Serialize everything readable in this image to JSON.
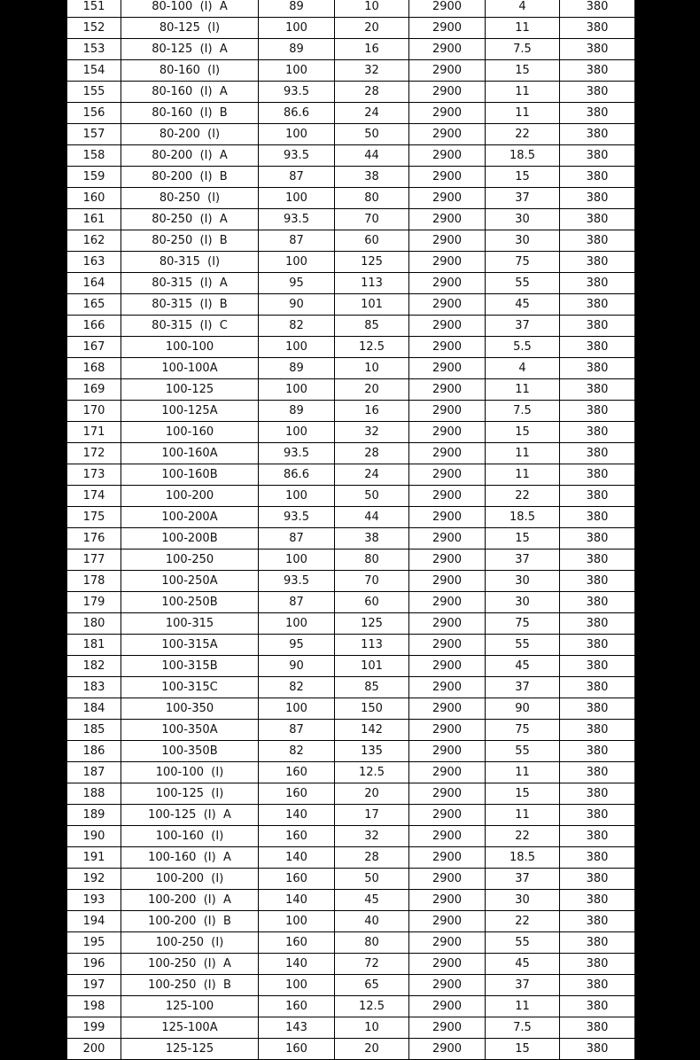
{
  "rows": [
    [
      "151",
      "80-100  (I)  A",
      "89",
      "10",
      "2900",
      "4",
      "380"
    ],
    [
      "152",
      "80-125  (I)",
      "100",
      "20",
      "2900",
      "11",
      "380"
    ],
    [
      "153",
      "80-125  (I)  A",
      "89",
      "16",
      "2900",
      "7.5",
      "380"
    ],
    [
      "154",
      "80-160  (I)",
      "100",
      "32",
      "2900",
      "15",
      "380"
    ],
    [
      "155",
      "80-160  (I)  A",
      "93.5",
      "28",
      "2900",
      "11",
      "380"
    ],
    [
      "156",
      "80-160  (I)  B",
      "86.6",
      "24",
      "2900",
      "11",
      "380"
    ],
    [
      "157",
      "80-200  (I)",
      "100",
      "50",
      "2900",
      "22",
      "380"
    ],
    [
      "158",
      "80-200  (I)  A",
      "93.5",
      "44",
      "2900",
      "18.5",
      "380"
    ],
    [
      "159",
      "80-200  (I)  B",
      "87",
      "38",
      "2900",
      "15",
      "380"
    ],
    [
      "160",
      "80-250  (I)",
      "100",
      "80",
      "2900",
      "37",
      "380"
    ],
    [
      "161",
      "80-250  (I)  A",
      "93.5",
      "70",
      "2900",
      "30",
      "380"
    ],
    [
      "162",
      "80-250  (I)  B",
      "87",
      "60",
      "2900",
      "30",
      "380"
    ],
    [
      "163",
      "80-315  (I)",
      "100",
      "125",
      "2900",
      "75",
      "380"
    ],
    [
      "164",
      "80-315  (I)  A",
      "95",
      "113",
      "2900",
      "55",
      "380"
    ],
    [
      "165",
      "80-315  (I)  B",
      "90",
      "101",
      "2900",
      "45",
      "380"
    ],
    [
      "166",
      "80-315  (I)  C",
      "82",
      "85",
      "2900",
      "37",
      "380"
    ],
    [
      "167",
      "100-100",
      "100",
      "12.5",
      "2900",
      "5.5",
      "380"
    ],
    [
      "168",
      "100-100A",
      "89",
      "10",
      "2900",
      "4",
      "380"
    ],
    [
      "169",
      "100-125",
      "100",
      "20",
      "2900",
      "11",
      "380"
    ],
    [
      "170",
      "100-125A",
      "89",
      "16",
      "2900",
      "7.5",
      "380"
    ],
    [
      "171",
      "100-160",
      "100",
      "32",
      "2900",
      "15",
      "380"
    ],
    [
      "172",
      "100-160A",
      "93.5",
      "28",
      "2900",
      "11",
      "380"
    ],
    [
      "173",
      "100-160B",
      "86.6",
      "24",
      "2900",
      "11",
      "380"
    ],
    [
      "174",
      "100-200",
      "100",
      "50",
      "2900",
      "22",
      "380"
    ],
    [
      "175",
      "100-200A",
      "93.5",
      "44",
      "2900",
      "18.5",
      "380"
    ],
    [
      "176",
      "100-200B",
      "87",
      "38",
      "2900",
      "15",
      "380"
    ],
    [
      "177",
      "100-250",
      "100",
      "80",
      "2900",
      "37",
      "380"
    ],
    [
      "178",
      "100-250A",
      "93.5",
      "70",
      "2900",
      "30",
      "380"
    ],
    [
      "179",
      "100-250B",
      "87",
      "60",
      "2900",
      "30",
      "380"
    ],
    [
      "180",
      "100-315",
      "100",
      "125",
      "2900",
      "75",
      "380"
    ],
    [
      "181",
      "100-315A",
      "95",
      "113",
      "2900",
      "55",
      "380"
    ],
    [
      "182",
      "100-315B",
      "90",
      "101",
      "2900",
      "45",
      "380"
    ],
    [
      "183",
      "100-315C",
      "82",
      "85",
      "2900",
      "37",
      "380"
    ],
    [
      "184",
      "100-350",
      "100",
      "150",
      "2900",
      "90",
      "380"
    ],
    [
      "185",
      "100-350A",
      "87",
      "142",
      "2900",
      "75",
      "380"
    ],
    [
      "186",
      "100-350B",
      "82",
      "135",
      "2900",
      "55",
      "380"
    ],
    [
      "187",
      "100-100  (I)",
      "160",
      "12.5",
      "2900",
      "11",
      "380"
    ],
    [
      "188",
      "100-125  (I)",
      "160",
      "20",
      "2900",
      "15",
      "380"
    ],
    [
      "189",
      "100-125  (I)  A",
      "140",
      "17",
      "2900",
      "11",
      "380"
    ],
    [
      "190",
      "100-160  (I)",
      "160",
      "32",
      "2900",
      "22",
      "380"
    ],
    [
      "191",
      "100-160  (I)  A",
      "140",
      "28",
      "2900",
      "18.5",
      "380"
    ],
    [
      "192",
      "100-200  (I)",
      "160",
      "50",
      "2900",
      "37",
      "380"
    ],
    [
      "193",
      "100-200  (I)  A",
      "140",
      "45",
      "2900",
      "30",
      "380"
    ],
    [
      "194",
      "100-200  (I)  B",
      "100",
      "40",
      "2900",
      "22",
      "380"
    ],
    [
      "195",
      "100-250  (I)",
      "160",
      "80",
      "2900",
      "55",
      "380"
    ],
    [
      "196",
      "100-250  (I)  A",
      "140",
      "72",
      "2900",
      "45",
      "380"
    ],
    [
      "197",
      "100-250  (I)  B",
      "100",
      "65",
      "2900",
      "37",
      "380"
    ],
    [
      "198",
      "125-100",
      "160",
      "12.5",
      "2900",
      "11",
      "380"
    ],
    [
      "199",
      "125-100A",
      "143",
      "10",
      "2900",
      "7.5",
      "380"
    ],
    [
      "200",
      "125-125",
      "160",
      "20",
      "2900",
      "15",
      "380"
    ]
  ]
}
